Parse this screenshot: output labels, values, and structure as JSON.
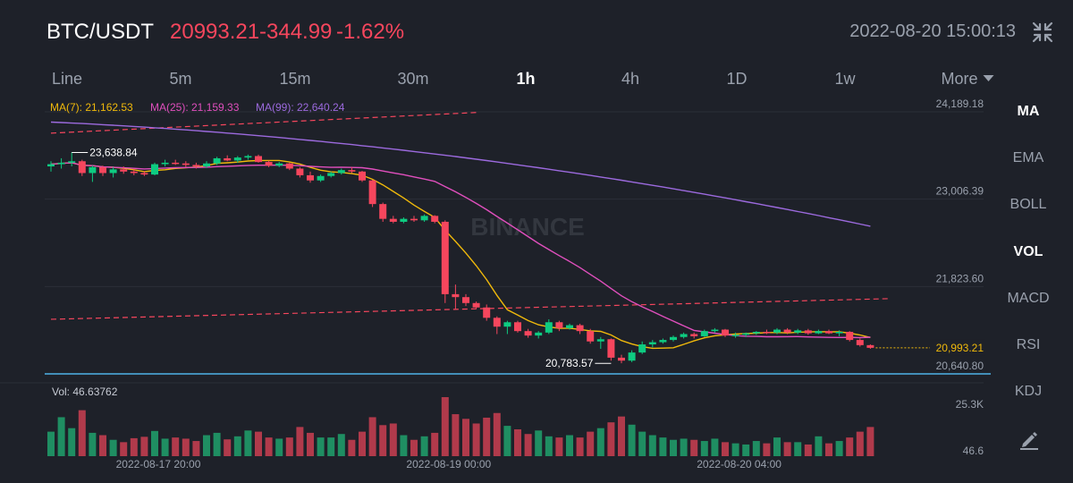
{
  "header": {
    "pair": "BTC/USDT",
    "last_price": "20993.21",
    "change": "-344.99",
    "change_pct": "-1.62%",
    "timestamp": "2022-08-20 15:00:13",
    "collapse_icon": "collapse-icon"
  },
  "intervals": [
    {
      "label": "Line",
      "active": false
    },
    {
      "label": "5m",
      "active": false
    },
    {
      "label": "15m",
      "active": false
    },
    {
      "label": "30m",
      "active": false
    },
    {
      "label": "1h",
      "active": true
    },
    {
      "label": "4h",
      "active": false
    },
    {
      "label": "1D",
      "active": false
    },
    {
      "label": "1w",
      "active": false
    },
    {
      "label": "More",
      "active": false
    }
  ],
  "indicators": [
    {
      "label": "MA",
      "active": true
    },
    {
      "label": "EMA",
      "active": false
    },
    {
      "label": "BOLL",
      "active": false
    },
    {
      "label": "VOL",
      "active": true
    },
    {
      "label": "MACD",
      "active": false
    },
    {
      "label": "RSI",
      "active": false
    },
    {
      "label": "KDJ",
      "active": false
    }
  ],
  "edit_icon": "pencil-icon",
  "colors": {
    "up": "#0ecb81",
    "down": "#f6465d",
    "ma7": "#f0b90b",
    "ma25": "#e04fbd",
    "ma99": "#9c6ade",
    "background": "#1e2129",
    "grid": "#2b2f38",
    "hline": "#4fb3e8"
  },
  "watermark": "BINANCE",
  "chart_data": {
    "type": "candlestick",
    "pair": "BTC/USDT",
    "interval": "1h",
    "ma_legend": {
      "ma7": "MA(7): 21,162.53",
      "ma25": "MA(25): 21,159.33",
      "ma99": "MA(99): 22,640.24"
    },
    "price_axis": {
      "ticks": [
        {
          "value": 24189.18,
          "label": "24,189.18"
        },
        {
          "value": 23006.39,
          "label": "23,006.39"
        },
        {
          "value": 21823.6,
          "label": "21,823.60"
        },
        {
          "value": 20640.8,
          "label": "20,640.80"
        }
      ],
      "range": [
        20640.8,
        24189.18
      ]
    },
    "time_axis": {
      "ticks": [
        {
          "index": 10,
          "label": "2022-08-17 20:00"
        },
        {
          "index": 38,
          "label": "2022-08-19 00:00"
        },
        {
          "index": 66,
          "label": "2022-08-20 04:00"
        }
      ]
    },
    "annotations": {
      "high": {
        "index": 2,
        "value": 23638.84,
        "label": "23,638.84"
      },
      "low": {
        "index": 54,
        "value": 20783.57,
        "label": "20,783.57"
      },
      "last_price": {
        "value": 20993.21,
        "label": "20,993.21"
      },
      "horizontal_line": 20640.8
    },
    "trendlines": [
      {
        "from": [
          0,
          23900
        ],
        "to": [
          41,
          24180
        ]
      },
      {
        "from": [
          0,
          21380
        ],
        "to": [
          81,
          21660
        ]
      }
    ],
    "volume": {
      "title": "Vol: 46.63762",
      "max_label": "25.3K",
      "min_label": "46.6",
      "max": 25300
    },
    "candles": [
      {
        "o": 23450,
        "h": 23520,
        "l": 23380,
        "c": 23480,
        "v": 10500
      },
      {
        "o": 23480,
        "h": 23560,
        "l": 23420,
        "c": 23500,
        "v": 16700
      },
      {
        "o": 23500,
        "h": 23640,
        "l": 23450,
        "c": 23520,
        "v": 12000
      },
      {
        "o": 23520,
        "h": 23540,
        "l": 23320,
        "c": 23360,
        "v": 19700
      },
      {
        "o": 23360,
        "h": 23460,
        "l": 23240,
        "c": 23440,
        "v": 10000
      },
      {
        "o": 23440,
        "h": 23460,
        "l": 23320,
        "c": 23360,
        "v": 9000
      },
      {
        "o": 23360,
        "h": 23440,
        "l": 23300,
        "c": 23410,
        "v": 7000
      },
      {
        "o": 23410,
        "h": 23450,
        "l": 23350,
        "c": 23380,
        "v": 6000
      },
      {
        "o": 23380,
        "h": 23420,
        "l": 23330,
        "c": 23360,
        "v": 7700
      },
      {
        "o": 23360,
        "h": 23390,
        "l": 23320,
        "c": 23340,
        "v": 8300
      },
      {
        "o": 23340,
        "h": 23500,
        "l": 23330,
        "c": 23480,
        "v": 10800
      },
      {
        "o": 23480,
        "h": 23540,
        "l": 23450,
        "c": 23500,
        "v": 7500
      },
      {
        "o": 23500,
        "h": 23540,
        "l": 23470,
        "c": 23490,
        "v": 8000
      },
      {
        "o": 23490,
        "h": 23520,
        "l": 23440,
        "c": 23470,
        "v": 7500
      },
      {
        "o": 23470,
        "h": 23500,
        "l": 23420,
        "c": 23450,
        "v": 6500
      },
      {
        "o": 23450,
        "h": 23520,
        "l": 23430,
        "c": 23490,
        "v": 9000
      },
      {
        "o": 23490,
        "h": 23580,
        "l": 23470,
        "c": 23560,
        "v": 10000
      },
      {
        "o": 23560,
        "h": 23600,
        "l": 23520,
        "c": 23530,
        "v": 7200
      },
      {
        "o": 23530,
        "h": 23590,
        "l": 23500,
        "c": 23570,
        "v": 8500
      },
      {
        "o": 23570,
        "h": 23610,
        "l": 23540,
        "c": 23590,
        "v": 11000
      },
      {
        "o": 23590,
        "h": 23610,
        "l": 23500,
        "c": 23510,
        "v": 10500
      },
      {
        "o": 23510,
        "h": 23530,
        "l": 23440,
        "c": 23460,
        "v": 8000
      },
      {
        "o": 23460,
        "h": 23510,
        "l": 23440,
        "c": 23490,
        "v": 7500
      },
      {
        "o": 23490,
        "h": 23500,
        "l": 23400,
        "c": 23420,
        "v": 8000
      },
      {
        "o": 23420,
        "h": 23440,
        "l": 23300,
        "c": 23330,
        "v": 12500
      },
      {
        "o": 23330,
        "h": 23380,
        "l": 23230,
        "c": 23260,
        "v": 10000
      },
      {
        "o": 23260,
        "h": 23340,
        "l": 23240,
        "c": 23320,
        "v": 8000
      },
      {
        "o": 23320,
        "h": 23380,
        "l": 23300,
        "c": 23360,
        "v": 8000
      },
      {
        "o": 23360,
        "h": 23420,
        "l": 23340,
        "c": 23400,
        "v": 9500
      },
      {
        "o": 23400,
        "h": 23440,
        "l": 23360,
        "c": 23380,
        "v": 7000
      },
      {
        "o": 23380,
        "h": 23390,
        "l": 23240,
        "c": 23260,
        "v": 10500
      },
      {
        "o": 23260,
        "h": 23270,
        "l": 22900,
        "c": 22940,
        "v": 16700
      },
      {
        "o": 22940,
        "h": 22960,
        "l": 22700,
        "c": 22740,
        "v": 13300
      },
      {
        "o": 22740,
        "h": 22780,
        "l": 22680,
        "c": 22700,
        "v": 14000
      },
      {
        "o": 22700,
        "h": 22760,
        "l": 22680,
        "c": 22740,
        "v": 9000
      },
      {
        "o": 22740,
        "h": 22780,
        "l": 22700,
        "c": 22720,
        "v": 7000
      },
      {
        "o": 22720,
        "h": 22800,
        "l": 22700,
        "c": 22780,
        "v": 8500
      },
      {
        "o": 22780,
        "h": 22790,
        "l": 22680,
        "c": 22700,
        "v": 10000
      },
      {
        "o": 22700,
        "h": 22720,
        "l": 21600,
        "c": 21720,
        "v": 25300
      },
      {
        "o": 21720,
        "h": 21850,
        "l": 21520,
        "c": 21680,
        "v": 18000
      },
      {
        "o": 21680,
        "h": 21720,
        "l": 21560,
        "c": 21600,
        "v": 16000
      },
      {
        "o": 21600,
        "h": 21620,
        "l": 21520,
        "c": 21540,
        "v": 14000
      },
      {
        "o": 21540,
        "h": 21580,
        "l": 21360,
        "c": 21400,
        "v": 16500
      },
      {
        "o": 21400,
        "h": 21420,
        "l": 21180,
        "c": 21280,
        "v": 18500
      },
      {
        "o": 21280,
        "h": 21360,
        "l": 21180,
        "c": 21340,
        "v": 13000
      },
      {
        "o": 21340,
        "h": 21360,
        "l": 21200,
        "c": 21220,
        "v": 11500
      },
      {
        "o": 21220,
        "h": 21250,
        "l": 21130,
        "c": 21160,
        "v": 9500
      },
      {
        "o": 21160,
        "h": 21220,
        "l": 21120,
        "c": 21200,
        "v": 11000
      },
      {
        "o": 21200,
        "h": 21380,
        "l": 21180,
        "c": 21340,
        "v": 8500
      },
      {
        "o": 21340,
        "h": 21360,
        "l": 21220,
        "c": 21260,
        "v": 8000
      },
      {
        "o": 21260,
        "h": 21320,
        "l": 21240,
        "c": 21300,
        "v": 9000
      },
      {
        "o": 21300,
        "h": 21320,
        "l": 21180,
        "c": 21220,
        "v": 8000
      },
      {
        "o": 21220,
        "h": 21250,
        "l": 21050,
        "c": 21080,
        "v": 10500
      },
      {
        "o": 21080,
        "h": 21140,
        "l": 20980,
        "c": 21110,
        "v": 12000
      },
      {
        "o": 21110,
        "h": 21120,
        "l": 20820,
        "c": 20860,
        "v": 14500
      },
      {
        "o": 20860,
        "h": 20900,
        "l": 20784,
        "c": 20820,
        "v": 17000
      },
      {
        "o": 20820,
        "h": 20960,
        "l": 20800,
        "c": 20930,
        "v": 13500
      },
      {
        "o": 20930,
        "h": 21080,
        "l": 20910,
        "c": 21040,
        "v": 10500
      },
      {
        "o": 21040,
        "h": 21100,
        "l": 21000,
        "c": 21070,
        "v": 9000
      },
      {
        "o": 21070,
        "h": 21120,
        "l": 21050,
        "c": 21100,
        "v": 8000
      },
      {
        "o": 21100,
        "h": 21160,
        "l": 21080,
        "c": 21140,
        "v": 7000
      },
      {
        "o": 21140,
        "h": 21200,
        "l": 21120,
        "c": 21180,
        "v": 7500
      },
      {
        "o": 21180,
        "h": 21200,
        "l": 21120,
        "c": 21150,
        "v": 7000
      },
      {
        "o": 21150,
        "h": 21240,
        "l": 21140,
        "c": 21220,
        "v": 6500
      },
      {
        "o": 21220,
        "h": 21260,
        "l": 21200,
        "c": 21240,
        "v": 7500
      },
      {
        "o": 21240,
        "h": 21250,
        "l": 21140,
        "c": 21160,
        "v": 6000
      },
      {
        "o": 21160,
        "h": 21200,
        "l": 21130,
        "c": 21170,
        "v": 5500
      },
      {
        "o": 21170,
        "h": 21200,
        "l": 21140,
        "c": 21190,
        "v": 5000
      },
      {
        "o": 21190,
        "h": 21220,
        "l": 21170,
        "c": 21210,
        "v": 6500
      },
      {
        "o": 21210,
        "h": 21240,
        "l": 21180,
        "c": 21200,
        "v": 5500
      },
      {
        "o": 21200,
        "h": 21260,
        "l": 21180,
        "c": 21240,
        "v": 8000
      },
      {
        "o": 21240,
        "h": 21260,
        "l": 21180,
        "c": 21200,
        "v": 6000
      },
      {
        "o": 21200,
        "h": 21250,
        "l": 21180,
        "c": 21230,
        "v": 6000
      },
      {
        "o": 21230,
        "h": 21250,
        "l": 21170,
        "c": 21190,
        "v": 5000
      },
      {
        "o": 21190,
        "h": 21240,
        "l": 21180,
        "c": 21220,
        "v": 8500
      },
      {
        "o": 21220,
        "h": 21240,
        "l": 21180,
        "c": 21190,
        "v": 5500
      },
      {
        "o": 21190,
        "h": 21230,
        "l": 21150,
        "c": 21210,
        "v": 6500
      },
      {
        "o": 21210,
        "h": 21220,
        "l": 21080,
        "c": 21100,
        "v": 8000
      },
      {
        "o": 21100,
        "h": 21120,
        "l": 21010,
        "c": 21030,
        "v": 10500
      },
      {
        "o": 21030,
        "h": 21040,
        "l": 20980,
        "c": 20993.21,
        "v": 12500
      }
    ]
  }
}
